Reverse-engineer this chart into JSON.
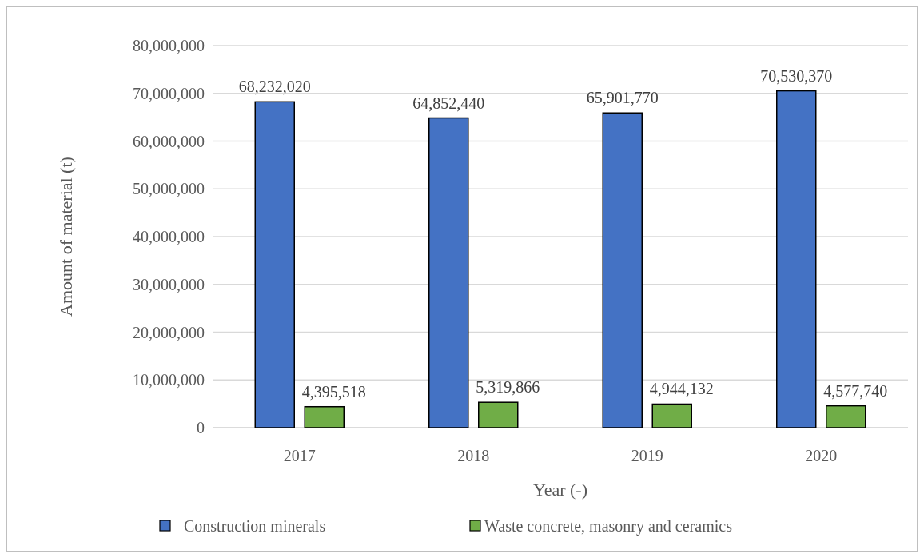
{
  "chart_data": {
    "type": "bar",
    "xlabel": "Year (-)",
    "ylabel": "Amount of material (t)",
    "categories": [
      "2017",
      "2018",
      "2019",
      "2020"
    ],
    "series": [
      {
        "name": "Construction minerals",
        "color": "#4472c4",
        "values": [
          68232020,
          64852440,
          65901770,
          70530370
        ],
        "value_labels": [
          "68,232,020",
          "64,852,440",
          "65,901,770",
          "70,530,370"
        ]
      },
      {
        "name": "Waste concrete, masonry and ceramics",
        "color": "#70ad47",
        "values": [
          4395518,
          5319866,
          4944132,
          4577740
        ],
        "value_labels": [
          "4,395,518",
          "5,319,866",
          "4,944,132",
          "4,577,740"
        ]
      }
    ],
    "ylim": [
      0,
      80000000
    ],
    "yticks": [
      {
        "value": 0,
        "label": "0"
      },
      {
        "value": 10000000,
        "label": "10,000,000"
      },
      {
        "value": 20000000,
        "label": "20,000,000"
      },
      {
        "value": 30000000,
        "label": "30,000,000"
      },
      {
        "value": 40000000,
        "label": "40,000,000"
      },
      {
        "value": 50000000,
        "label": "50,000,000"
      },
      {
        "value": 60000000,
        "label": "60,000,000"
      },
      {
        "value": 70000000,
        "label": "70,000,000"
      },
      {
        "value": 80000000,
        "label": "80,000,000"
      }
    ],
    "grid": "y",
    "legend": "bottom"
  }
}
